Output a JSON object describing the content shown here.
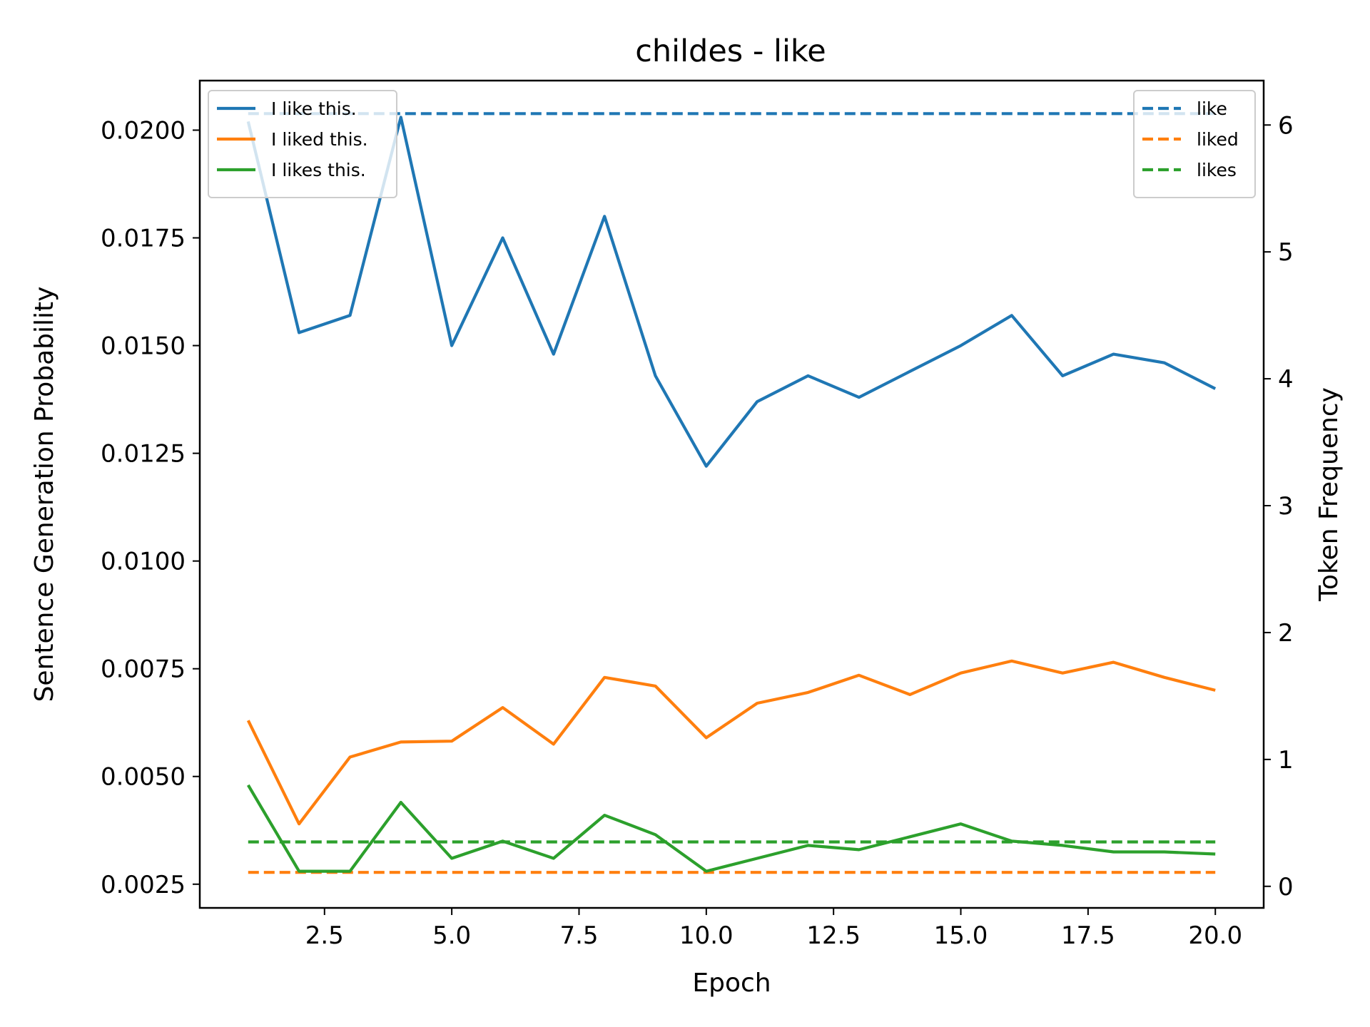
{
  "chart_data": {
    "type": "line",
    "title": "childes - like",
    "xlabel": "Epoch",
    "ylabel_left": "Sentence Generation Probability",
    "ylabel_right": "Token Frequency",
    "x": [
      1,
      2,
      3,
      4,
      5,
      6,
      7,
      8,
      9,
      10,
      11,
      12,
      13,
      14,
      15,
      16,
      17,
      18,
      19,
      20
    ],
    "xlim": [
      0.05,
      20.95
    ],
    "ylim_left": [
      0.00195,
      0.02115
    ],
    "ylim_right": [
      -0.17,
      6.35
    ],
    "xticks": [
      "2.5",
      "5.0",
      "7.5",
      "10.0",
      "12.5",
      "15.0",
      "17.5",
      "20.0"
    ],
    "yticks_left": [
      "0.0025",
      "0.0050",
      "0.0075",
      "0.0100",
      "0.0125",
      "0.0150",
      "0.0175",
      "0.0200"
    ],
    "yticks_right": [
      "0",
      "1",
      "2",
      "3",
      "4",
      "5",
      "6"
    ],
    "series": [
      {
        "name": "I like this.",
        "axis": "left",
        "style": "solid",
        "color": "#1f77b4",
        "values": [
          0.0202,
          0.0153,
          0.0157,
          0.0203,
          0.015,
          0.0175,
          0.0148,
          0.018,
          0.0143,
          0.0122,
          0.0137,
          0.0143,
          0.0138,
          0.0144,
          0.015,
          0.0157,
          0.0143,
          0.0148,
          0.0146,
          0.014
        ]
      },
      {
        "name": "I liked this.",
        "axis": "left",
        "style": "solid",
        "color": "#ff7f0e",
        "values": [
          0.0063,
          0.0039,
          0.00545,
          0.0058,
          0.00582,
          0.0066,
          0.00575,
          0.0073,
          0.0071,
          0.0059,
          0.0067,
          0.00695,
          0.00735,
          0.0069,
          0.0074,
          0.00768,
          0.0074,
          0.00765,
          0.0073,
          0.007
        ]
      },
      {
        "name": "I likes this.",
        "axis": "left",
        "style": "solid",
        "color": "#2ca02c",
        "values": [
          0.0048,
          0.0028,
          0.0028,
          0.0044,
          0.0031,
          0.0035,
          0.0031,
          0.0041,
          0.00365,
          0.0028,
          0.0031,
          0.0034,
          0.0033,
          0.0036,
          0.0039,
          0.0035,
          0.0034,
          0.00325,
          0.00325,
          0.0032
        ]
      },
      {
        "name": "like",
        "axis": "right",
        "style": "dashed",
        "color": "#1f77b4",
        "values": [
          6.09,
          6.09,
          6.09,
          6.09,
          6.09,
          6.09,
          6.09,
          6.09,
          6.09,
          6.09,
          6.09,
          6.09,
          6.09,
          6.09,
          6.09,
          6.09,
          6.09,
          6.09,
          6.09,
          6.09
        ]
      },
      {
        "name": "liked",
        "axis": "right",
        "style": "dashed",
        "color": "#ff7f0e",
        "values": [
          0.11,
          0.11,
          0.11,
          0.11,
          0.11,
          0.11,
          0.11,
          0.11,
          0.11,
          0.11,
          0.11,
          0.11,
          0.11,
          0.11,
          0.11,
          0.11,
          0.11,
          0.11,
          0.11,
          0.11
        ]
      },
      {
        "name": "likes",
        "axis": "right",
        "style": "dashed",
        "color": "#2ca02c",
        "values": [
          0.35,
          0.35,
          0.35,
          0.35,
          0.35,
          0.35,
          0.35,
          0.35,
          0.35,
          0.35,
          0.35,
          0.35,
          0.35,
          0.35,
          0.35,
          0.35,
          0.35,
          0.35,
          0.35,
          0.35
        ]
      }
    ],
    "legend_left": {
      "placement": "upper left",
      "entries": [
        "I like this.",
        "I liked this.",
        "I likes this."
      ]
    },
    "legend_right": {
      "placement": "upper right",
      "entries": [
        "like",
        "liked",
        "likes"
      ]
    },
    "grid": false
  }
}
